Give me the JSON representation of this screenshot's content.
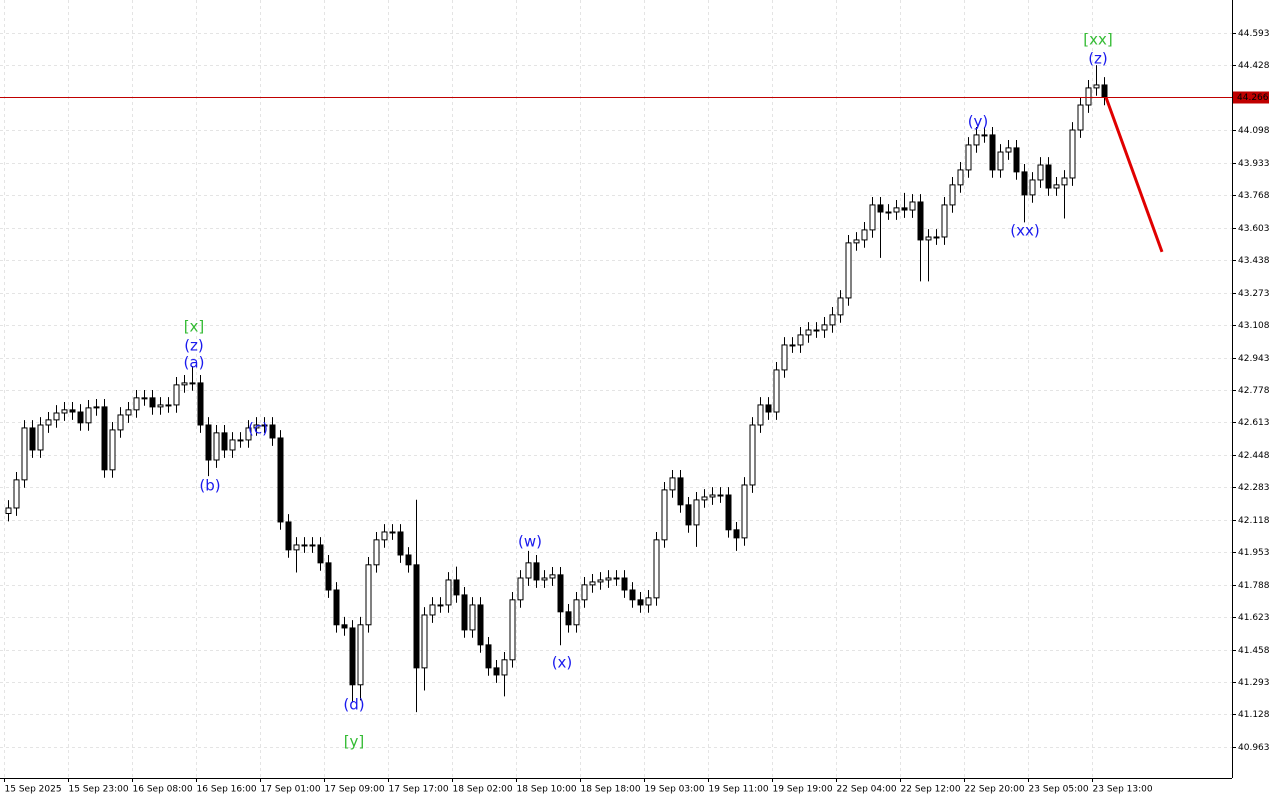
{
  "chart_data": {
    "type": "candlestick",
    "open": [
      42.15,
      42.178,
      42.321,
      42.585,
      42.473,
      42.6,
      42.626,
      42.661,
      42.677,
      42.666,
      42.611,
      42.687,
      42.692,
      42.372,
      42.575,
      42.651,
      42.677,
      42.738,
      42.738,
      42.692,
      42.702,
      42.702,
      42.804,
      42.814,
      42.814,
      42.6,
      42.422,
      42.56,
      42.473,
      42.524,
      42.524,
      42.585,
      42.6,
      42.6,
      42.534,
      42.107,
      41.965,
      41.99,
      41.99,
      41.99,
      41.899,
      41.761,
      41.584,
      41.568,
      41.279,
      41.584,
      41.889,
      42.016,
      42.056,
      42.056,
      41.939,
      41.889,
      41.365,
      41.634,
      41.685,
      41.685,
      41.812,
      41.736,
      41.558,
      41.685,
      41.482,
      41.365,
      41.329,
      41.406,
      41.711,
      41.822,
      41.899,
      41.812,
      41.822,
      41.838,
      41.65,
      41.584,
      41.711,
      41.787,
      41.802,
      41.812,
      41.822,
      41.822,
      41.761,
      41.711,
      41.685,
      41.721,
      42.016,
      42.27,
      42.331,
      42.194,
      42.092,
      42.219,
      42.234,
      42.244,
      42.244,
      42.067,
      42.026,
      42.295,
      42.6,
      42.702,
      42.666,
      42.88,
      43.007,
      43.007,
      43.058,
      43.083,
      43.083,
      43.109,
      43.16,
      43.246,
      43.526,
      43.541,
      43.592,
      43.719,
      43.683,
      43.683,
      43.704,
      43.693,
      43.734,
      43.541,
      43.556,
      43.556,
      43.719,
      43.821,
      43.897,
      44.024,
      44.075,
      44.075,
      43.897,
      43.988,
      44.009,
      43.887,
      43.77,
      43.846,
      43.922,
      43.805,
      43.821,
      43.856,
      44.1,
      44.227,
      44.314,
      44.329
    ],
    "high": [
      42.218,
      42.361,
      42.625,
      42.625,
      42.64,
      42.666,
      42.701,
      42.717,
      42.717,
      42.706,
      42.727,
      42.732,
      42.732,
      42.615,
      42.691,
      42.717,
      42.778,
      42.778,
      42.778,
      42.742,
      42.742,
      42.844,
      42.854,
      42.9,
      42.854,
      42.64,
      42.6,
      42.6,
      42.564,
      42.564,
      42.625,
      42.64,
      42.64,
      42.64,
      42.574,
      42.147,
      42.03,
      42.03,
      42.03,
      42.03,
      41.939,
      41.801,
      41.624,
      41.608,
      41.624,
      41.929,
      42.056,
      42.096,
      42.096,
      42.096,
      41.979,
      42.22,
      41.674,
      41.725,
      41.725,
      41.852,
      41.88,
      41.776,
      41.725,
      41.725,
      41.522,
      41.405,
      41.446,
      41.751,
      41.862,
      41.96,
      41.939,
      41.862,
      41.878,
      41.878,
      41.69,
      41.751,
      41.827,
      41.842,
      41.852,
      41.862,
      41.862,
      41.862,
      41.801,
      41.751,
      41.761,
      42.056,
      42.31,
      42.371,
      42.371,
      42.234,
      42.259,
      42.274,
      42.284,
      42.284,
      42.284,
      42.107,
      42.335,
      42.64,
      42.742,
      42.742,
      42.92,
      43.047,
      43.047,
      43.098,
      43.123,
      43.123,
      43.149,
      43.2,
      43.286,
      43.566,
      43.581,
      43.632,
      43.759,
      43.759,
      43.723,
      43.744,
      43.78,
      43.774,
      43.774,
      43.596,
      43.596,
      43.759,
      43.861,
      43.937,
      44.064,
      44.115,
      44.115,
      44.115,
      44.028,
      44.049,
      44.049,
      43.927,
      43.886,
      43.962,
      43.962,
      43.861,
      43.896,
      44.14,
      44.267,
      44.354,
      44.43,
      44.369
    ],
    "low": [
      42.11,
      42.138,
      42.281,
      42.433,
      42.433,
      42.56,
      42.586,
      42.621,
      42.626,
      42.571,
      42.571,
      42.647,
      42.332,
      42.332,
      42.535,
      42.611,
      42.637,
      42.698,
      42.652,
      42.652,
      42.662,
      42.662,
      42.764,
      42.774,
      42.56,
      42.34,
      42.382,
      42.433,
      42.433,
      42.484,
      42.484,
      42.545,
      42.56,
      42.494,
      42.067,
      41.925,
      41.85,
      41.95,
      41.95,
      41.859,
      41.721,
      41.544,
      41.528,
      41.19,
      41.2,
      41.544,
      41.849,
      41.976,
      42.016,
      41.899,
      41.849,
      41.14,
      41.25,
      41.594,
      41.645,
      41.645,
      41.696,
      41.518,
      41.518,
      41.442,
      41.325,
      41.289,
      41.22,
      41.366,
      41.671,
      41.782,
      41.772,
      41.772,
      41.782,
      41.48,
      41.544,
      41.544,
      41.671,
      41.747,
      41.762,
      41.772,
      41.782,
      41.721,
      41.671,
      41.645,
      41.645,
      41.681,
      41.976,
      42.23,
      42.154,
      42.052,
      41.98,
      42.179,
      42.194,
      42.204,
      42.027,
      41.96,
      41.986,
      42.255,
      42.56,
      42.626,
      42.626,
      42.84,
      42.967,
      42.967,
      43.018,
      43.043,
      43.043,
      43.069,
      43.12,
      43.206,
      43.486,
      43.501,
      43.552,
      43.45,
      43.643,
      43.643,
      43.653,
      43.653,
      43.33,
      43.33,
      43.516,
      43.516,
      43.679,
      43.781,
      43.857,
      43.984,
      44.035,
      43.857,
      43.857,
      43.948,
      43.847,
      43.63,
      43.73,
      43.806,
      43.765,
      43.765,
      43.65,
      43.816,
      44.06,
      44.187,
      44.274,
      44.226
    ],
    "close": [
      42.178,
      42.321,
      42.585,
      42.473,
      42.6,
      42.626,
      42.661,
      42.677,
      42.666,
      42.611,
      42.687,
      42.692,
      42.372,
      42.575,
      42.651,
      42.677,
      42.738,
      42.738,
      42.692,
      42.702,
      42.702,
      42.804,
      42.814,
      42.814,
      42.6,
      42.422,
      42.56,
      42.473,
      42.524,
      42.524,
      42.585,
      42.6,
      42.6,
      42.534,
      42.107,
      41.965,
      41.99,
      41.99,
      41.99,
      41.899,
      41.761,
      41.584,
      41.568,
      41.279,
      41.584,
      41.889,
      42.016,
      42.056,
      42.056,
      41.939,
      41.889,
      41.365,
      41.634,
      41.685,
      41.685,
      41.812,
      41.736,
      41.558,
      41.685,
      41.482,
      41.365,
      41.329,
      41.406,
      41.711,
      41.822,
      41.899,
      41.812,
      41.822,
      41.838,
      41.65,
      41.584,
      41.711,
      41.787,
      41.802,
      41.812,
      41.822,
      41.822,
      41.761,
      41.711,
      41.685,
      41.721,
      42.016,
      42.27,
      42.331,
      42.194,
      42.092,
      42.219,
      42.234,
      42.244,
      42.244,
      42.067,
      42.026,
      42.295,
      42.6,
      42.702,
      42.666,
      42.88,
      43.007,
      43.007,
      43.058,
      43.083,
      43.083,
      43.109,
      43.16,
      43.246,
      43.526,
      43.541,
      43.592,
      43.719,
      43.683,
      43.683,
      43.704,
      43.693,
      43.734,
      43.541,
      43.556,
      43.556,
      43.719,
      43.821,
      43.897,
      44.024,
      44.075,
      44.075,
      43.897,
      43.988,
      44.009,
      43.887,
      43.77,
      43.846,
      43.922,
      43.805,
      43.821,
      43.856,
      44.1,
      44.227,
      44.314,
      44.329,
      44.266
    ],
    "up_color": "#ffffff",
    "down_color": "#000000",
    "ylim": [
      40.805,
      44.761
    ],
    "yticks": [
      44.593,
      44.428,
      44.098,
      43.933,
      43.768,
      43.603,
      43.438,
      43.273,
      43.108,
      42.943,
      42.778,
      42.613,
      42.448,
      42.283,
      42.118,
      41.953,
      41.788,
      41.623,
      41.458,
      41.293,
      41.128,
      40.963
    ],
    "xticks": [
      {
        "value": 0,
        "label": "15 Sep 2025"
      },
      {
        "value": 8,
        "label": "15 Sep 23:00"
      },
      {
        "value": 16,
        "label": "16 Sep 08:00"
      },
      {
        "value": 24,
        "label": "16 Sep 16:00"
      },
      {
        "value": 32,
        "label": "17 Sep 01:00"
      },
      {
        "value": 40,
        "label": "17 Sep 09:00"
      },
      {
        "value": 48,
        "label": "17 Sep 17:00"
      },
      {
        "value": 56,
        "label": "18 Sep 02:00"
      },
      {
        "value": 64,
        "label": "18 Sep 10:00"
      },
      {
        "value": 72,
        "label": "18 Sep 18:00"
      },
      {
        "value": 80,
        "label": "19 Sep 03:00"
      },
      {
        "value": 88,
        "label": "19 Sep 11:00"
      },
      {
        "value": 96,
        "label": "19 Sep 19:00"
      },
      {
        "value": 104,
        "label": "22 Sep 04:00"
      },
      {
        "value": 112,
        "label": "22 Sep 12:00"
      },
      {
        "value": 120,
        "label": "22 Sep 20:00"
      },
      {
        "value": 128,
        "label": "23 Sep 05:00"
      },
      {
        "value": 136,
        "label": "23 Sep 13:00"
      }
    ],
    "grid": true,
    "current_price": 44.266,
    "current_price_color": "#c00000",
    "projection_target": 43.48,
    "projection_color": "#e00000",
    "annotations": [
      {
        "text": "[x]",
        "color": "#33bb33"
      },
      {
        "text": "(z)",
        "color": "#1a1aee"
      },
      {
        "text": "(a)",
        "color": "#1a1aee"
      },
      {
        "text": "(b)",
        "color": "#1a1aee"
      },
      {
        "text": "(c)",
        "color": "#1a1aee"
      },
      {
        "text": "(d)",
        "color": "#1a1aee"
      },
      {
        "text": "[y]",
        "color": "#33bb33"
      },
      {
        "text": "(w)",
        "color": "#1a1aee"
      },
      {
        "text": "(x)",
        "color": "#1a1aee"
      },
      {
        "text": "(y)",
        "color": "#1a1aee"
      },
      {
        "text": "(xx)",
        "color": "#1a1aee"
      },
      {
        "text": "[xx]",
        "color": "#33bb33"
      },
      {
        "text": "(z)",
        "color": "#1a1aee"
      }
    ]
  }
}
